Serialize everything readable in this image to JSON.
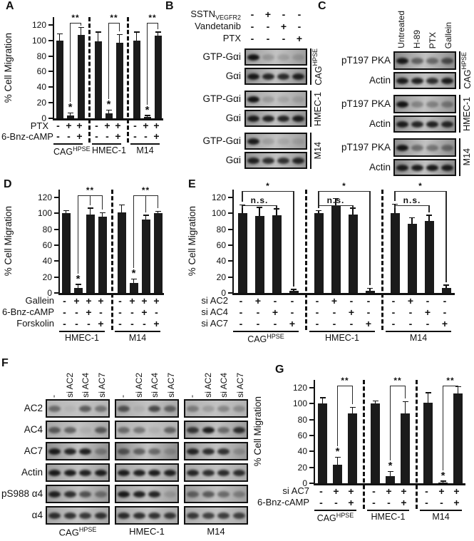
{
  "figure": {
    "background": "#ffffff",
    "bar_color": "#1b1b1b"
  },
  "chart_data": [
    {
      "panel": "A",
      "type": "bar",
      "ylabel": "% Cell Migration",
      "yticks": [
        0,
        20,
        40,
        60,
        80,
        100,
        120
      ],
      "ymax": 130,
      "groups": [
        {
          "label": "CAG^HPSE",
          "values": [
            100,
            4,
            107
          ],
          "errors": [
            8,
            2,
            9
          ],
          "star": 1,
          "brackets": [
            {
              "from": 1,
              "to": 2,
              "label": "**",
              "level": 1
            }
          ]
        },
        {
          "label": "HMEC-1",
          "values": [
            99,
            6,
            97
          ],
          "errors": [
            11,
            4,
            10
          ],
          "star": 1,
          "brackets": [
            {
              "from": 1,
              "to": 2,
              "label": "**",
              "level": 1
            }
          ]
        },
        {
          "label": "M14",
          "values": [
            100,
            2,
            106
          ],
          "errors": [
            10,
            1,
            4
          ],
          "star": 1,
          "brackets": [
            {
              "from": 1,
              "to": 2,
              "label": "**",
              "level": 1
            }
          ]
        }
      ],
      "rows": [
        {
          "label": "PTX",
          "values": [
            [
              "-",
              "+",
              "+"
            ],
            [
              "-",
              "+",
              "+"
            ],
            [
              "-",
              "+",
              "+"
            ]
          ]
        },
        {
          "label": "6-Bnz-cAMP",
          "values": [
            [
              "-",
              "-",
              "+"
            ],
            [
              "-",
              "-",
              "+"
            ],
            [
              "-",
              "-",
              "+"
            ]
          ]
        }
      ]
    },
    {
      "panel": "D",
      "type": "bar",
      "ylabel": "% Cell Migration",
      "yticks": [
        0,
        20,
        40,
        60,
        80,
        100,
        120
      ],
      "ymax": 130,
      "groups": [
        {
          "label": "HMEC-1",
          "values": [
            100,
            6,
            99,
            96
          ],
          "errors": [
            3,
            4,
            7,
            4
          ],
          "star": 1,
          "brackets": [
            {
              "from": 1,
              "to": 3,
              "label": "**",
              "level": 1,
              "legs": [
                2
              ]
            }
          ]
        },
        {
          "label": "M14",
          "values": [
            101,
            13,
            92,
            100
          ],
          "errors": [
            9,
            4,
            5,
            2
          ],
          "star": 1,
          "brackets": [
            {
              "from": 1,
              "to": 3,
              "label": "**",
              "level": 1,
              "legs": [
                2
              ]
            }
          ]
        }
      ],
      "rows": [
        {
          "label": "Gallein",
          "values": [
            [
              "-",
              "+",
              "+",
              "+"
            ],
            [
              "-",
              "+",
              "+",
              "+"
            ]
          ]
        },
        {
          "label": "6-Bnz-cAMP",
          "values": [
            [
              "-",
              "-",
              "+",
              "-"
            ],
            [
              "-",
              "-",
              "+",
              "-"
            ]
          ]
        },
        {
          "label": "Forskolin",
          "values": [
            [
              "-",
              "-",
              "-",
              "+"
            ],
            [
              "-",
              "-",
              "-",
              "+"
            ]
          ]
        }
      ]
    },
    {
      "panel": "E",
      "type": "bar",
      "ylabel": "% Cell Migration",
      "yticks": [
        0,
        20,
        40,
        60,
        80,
        100,
        120
      ],
      "ymax": 130,
      "groups": [
        {
          "label": "CAG^HPSE",
          "values": [
            100,
            97,
            98,
            3
          ],
          "errors": [
            10,
            10,
            7,
            1
          ],
          "brackets": [
            {
              "from": 0,
              "to": 2,
              "label": "n.s.",
              "level": 3
            },
            {
              "from": 0,
              "to": 3,
              "label": "*",
              "level": 2
            }
          ]
        },
        {
          "label": "HMEC-1",
          "values": [
            100,
            110,
            99,
            3
          ],
          "errors": [
            3,
            8,
            7,
            2
          ],
          "brackets": [
            {
              "from": 0,
              "to": 2,
              "label": "n.s.",
              "level": 3
            },
            {
              "from": 0,
              "to": 3,
              "label": "*",
              "level": 2
            }
          ]
        },
        {
          "label": "M14",
          "values": [
            100,
            87,
            91,
            6
          ],
          "errors": [
            11,
            7,
            6,
            3
          ],
          "brackets": [
            {
              "from": 0,
              "to": 2,
              "label": "n.s.",
              "level": 3
            },
            {
              "from": 0,
              "to": 3,
              "label": "*",
              "level": 2
            }
          ]
        }
      ],
      "rows": [
        {
          "label": "si AC2",
          "values": [
            [
              "-",
              "+",
              "-",
              "-"
            ],
            [
              "-",
              "+",
              "-",
              "-"
            ],
            [
              "-",
              "+",
              "-",
              "-"
            ]
          ]
        },
        {
          "label": "si AC4",
          "values": [
            [
              "-",
              "-",
              "+",
              "-"
            ],
            [
              "-",
              "-",
              "+",
              "-"
            ],
            [
              "-",
              "-",
              "+",
              "-"
            ]
          ]
        },
        {
          "label": "si AC7",
          "values": [
            [
              "-",
              "-",
              "-",
              "+"
            ],
            [
              "-",
              "-",
              "-",
              "+"
            ],
            [
              "-",
              "-",
              "-",
              "+"
            ]
          ]
        }
      ]
    },
    {
      "panel": "G",
      "type": "bar",
      "ylabel": "% Cell Migration",
      "yticks": [
        0,
        20,
        40,
        60,
        80,
        100,
        120
      ],
      "ymax": 130,
      "groups": [
        {
          "label": "CAG^HPSE",
          "values": [
            100,
            23,
            88
          ],
          "errors": [
            7,
            9,
            7
          ],
          "star": 1,
          "brackets": [
            {
              "from": 1,
              "to": 2,
              "label": "**",
              "level": 1
            }
          ]
        },
        {
          "label": "HMEC-1",
          "values": [
            100,
            9,
            88
          ],
          "errors": [
            3,
            5,
            14
          ],
          "star": 1,
          "brackets": [
            {
              "from": 1,
              "to": 2,
              "label": "**",
              "level": 1
            }
          ]
        },
        {
          "label": "M14",
          "values": [
            101,
            1,
            113
          ],
          "errors": [
            12,
            1,
            8
          ],
          "star": 1,
          "brackets": [
            {
              "from": 1,
              "to": 2,
              "label": "**",
              "level": 1
            }
          ]
        }
      ],
      "rows": [
        {
          "label": "si AC7",
          "values": [
            [
              "-",
              "+",
              "+"
            ],
            [
              "-",
              "+",
              "+"
            ],
            [
              "-",
              "+",
              "+"
            ]
          ]
        },
        {
          "label": "6-Bnz-cAMP",
          "values": [
            [
              "-",
              "-",
              "+"
            ],
            [
              "-",
              "-",
              "+"
            ],
            [
              "-",
              "-",
              "+"
            ]
          ]
        }
      ]
    }
  ],
  "blots": {
    "B": {
      "panel": "B",
      "treatment_rows": [
        {
          "label": "SSTN",
          "subscript": "VEGFR2",
          "values": [
            "-",
            "+",
            "-",
            "-"
          ]
        },
        {
          "label": "Vandetanib",
          "subscript": "",
          "values": [
            "-",
            "-",
            "+",
            "-"
          ]
        },
        {
          "label": "PTX",
          "subscript": "",
          "values": [
            "-",
            "-",
            "-",
            "+"
          ]
        }
      ],
      "groups": [
        {
          "cell_line": "CAG^HPSE",
          "rows": [
            {
              "label": "GTP-Gαi",
              "bg": "#9d9d9d",
              "bands": [
                0.95,
                0.2,
                0.15,
                0.15
              ]
            },
            {
              "label": "Gαi",
              "bg": "#8e8e8e",
              "bands": [
                0.92,
                0.85,
                0.82,
                0.88
              ]
            }
          ]
        },
        {
          "cell_line": "HMEC-1",
          "rows": [
            {
              "label": "GTP-Gαi",
              "bg": "#a5a5a5",
              "bands": [
                0.95,
                0.18,
                0.12,
                0.12
              ]
            },
            {
              "label": "Gαi",
              "bg": "#909090",
              "bands": [
                0.9,
                0.88,
                0.85,
                0.9
              ]
            }
          ]
        },
        {
          "cell_line": "M14",
          "rows": [
            {
              "label": "GTP-Gαi",
              "bg": "#9e9e9e",
              "bands": [
                0.9,
                0.15,
                0.1,
                0.1
              ]
            },
            {
              "label": "Gαi",
              "bg": "#949494",
              "bands": [
                0.88,
                0.8,
                0.78,
                0.85
              ]
            }
          ]
        }
      ]
    },
    "C": {
      "panel": "C",
      "col_labels": [
        "Untreated",
        "H-89",
        "PTX",
        "Gallein"
      ],
      "groups": [
        {
          "cell_line": "CAG^HPSE",
          "rows": [
            {
              "label": "pT197 PKA",
              "bg": "#8c8c8c",
              "bands": [
                0.92,
                0.5,
                0.45,
                0.6
              ]
            },
            {
              "label": "Actin",
              "bg": "#9a9a9a",
              "bands": [
                0.9,
                0.88,
                0.8,
                0.9
              ]
            }
          ]
        },
        {
          "cell_line": "HMEC-1",
          "rows": [
            {
              "label": "pT197 PKA",
              "bg": "#969696",
              "bands": [
                0.95,
                0.3,
                0.32,
                0.35
              ]
            },
            {
              "label": "Actin",
              "bg": "#909090",
              "bands": [
                0.9,
                0.85,
                0.88,
                0.85
              ]
            }
          ]
        },
        {
          "cell_line": "M14",
          "rows": [
            {
              "label": "pT197 PKA",
              "bg": "#8f8f8f",
              "bands": [
                0.95,
                0.42,
                0.38,
                0.42
              ]
            },
            {
              "label": "Actin",
              "bg": "#888888",
              "bands": [
                0.9,
                0.9,
                0.92,
                0.9
              ]
            }
          ]
        }
      ]
    },
    "F": {
      "panel": "F",
      "col_labels": [
        "-",
        "si AC2",
        "si AC4",
        "si AC7"
      ],
      "row_labels": [
        "AC2",
        "AC4",
        "AC7",
        "Actin",
        "pS988 α4",
        "α4"
      ],
      "groups": [
        {
          "cell_line": "CAG^HPSE",
          "blots": [
            {
              "bg": "#b5b5b5",
              "bands": [
                0.45,
                0.06,
                0.55,
                0.4
              ]
            },
            {
              "bg": "#a8a8a8",
              "bands": [
                0.55,
                0.5,
                0.08,
                0.55
              ]
            },
            {
              "bg": "#909090",
              "bands": [
                0.9,
                0.85,
                0.88,
                0.3
              ]
            },
            {
              "bg": "#a0a0a0",
              "bands": [
                0.92,
                0.9,
                0.88,
                0.9
              ]
            },
            {
              "bg": "#9a9a9a",
              "bands": [
                0.88,
                0.8,
                0.6,
                0.4
              ]
            },
            {
              "bg": "#a5a5a5",
              "bands": [
                0.8,
                0.78,
                0.75,
                0.78
              ]
            }
          ]
        },
        {
          "cell_line": "HMEC-1",
          "blots": [
            {
              "bg": "#a8a8a8",
              "bands": [
                0.6,
                0.08,
                0.65,
                0.5
              ]
            },
            {
              "bg": "#b2b2b2",
              "bands": [
                0.45,
                0.4,
                0.08,
                0.5
              ]
            },
            {
              "bg": "#8a8a8a",
              "bands": [
                0.55,
                0.5,
                0.45,
                0.18
              ]
            },
            {
              "bg": "#a5a5a5",
              "bands": [
                0.9,
                0.88,
                0.9,
                0.88
              ]
            },
            {
              "bg": "#a2a2a2",
              "bands": [
                0.92,
                0.88,
                0.85,
                0.15
              ]
            },
            {
              "bg": "#a8a8a8",
              "bands": [
                0.82,
                0.8,
                0.78,
                0.75
              ]
            }
          ]
        },
        {
          "cell_line": "M14",
          "blots": [
            {
              "bg": "#b0b0b0",
              "bands": [
                0.35,
                0.18,
                0.3,
                0.25
              ]
            },
            {
              "bg": "#9a9a9a",
              "bands": [
                0.75,
                0.9,
                0.45,
                0.8
              ]
            },
            {
              "bg": "#989898",
              "bands": [
                0.85,
                0.8,
                0.78,
                0.2
              ]
            },
            {
              "bg": "#aaaaaa",
              "bands": [
                0.85,
                0.8,
                0.82,
                0.8
              ]
            },
            {
              "bg": "#9e9e9e",
              "bands": [
                0.5,
                0.55,
                0.45,
                0.3
              ]
            },
            {
              "bg": "#ababab",
              "bands": [
                0.75,
                0.7,
                0.72,
                0.7
              ]
            }
          ]
        }
      ]
    }
  }
}
